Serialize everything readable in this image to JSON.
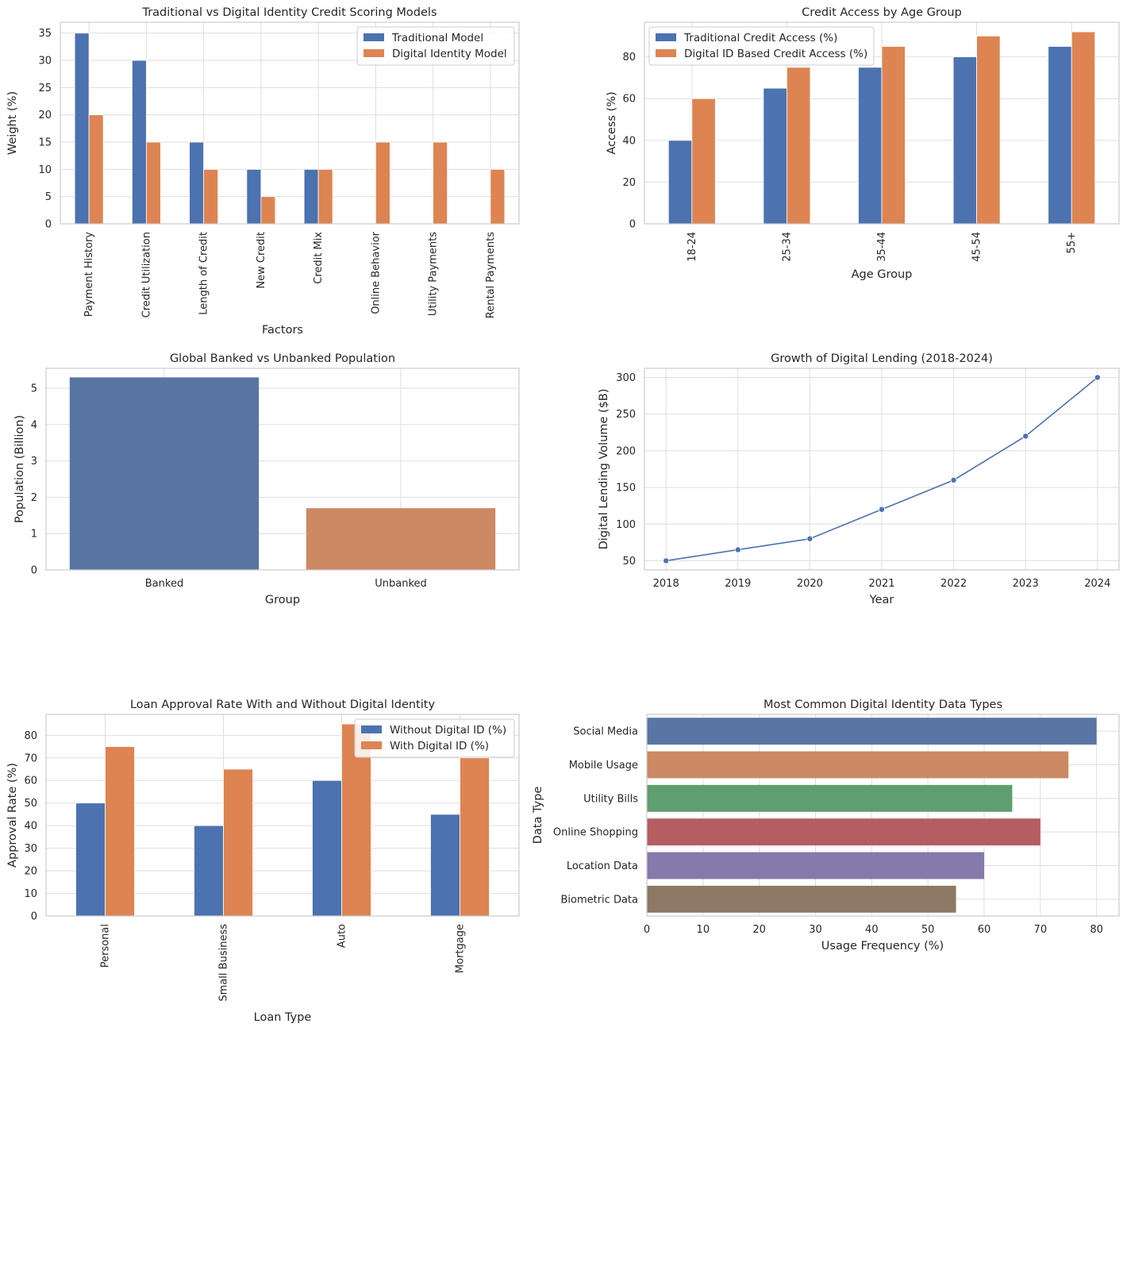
{
  "colors": {
    "blue": "#4c72b0",
    "orange": "#dd8452",
    "muted_blue": "#5875a4",
    "muted_orange": "#cc8963",
    "green": "#5f9e6e",
    "red": "#b55d60",
    "purple": "#857aab",
    "brown": "#8d7866",
    "grid": "#dedede",
    "frame": "#cccccc"
  },
  "chart_data": [
    {
      "type": "bar",
      "title": "Traditional vs Digital Identity Credit Scoring Models",
      "xlabel": "Factors",
      "ylabel": "Weight (%)",
      "categories": [
        "Payment History",
        "Credit Utilization",
        "Length of Credit",
        "New Credit",
        "Credit Mix",
        "Online Behavior",
        "Utility Payments",
        "Rental Payments"
      ],
      "series": [
        {
          "name": "Traditional Model",
          "values": [
            35,
            30,
            15,
            10,
            10,
            0,
            0,
            0
          ]
        },
        {
          "name": "Digital Identity Model",
          "values": [
            20,
            15,
            10,
            5,
            10,
            15,
            15,
            10
          ]
        }
      ],
      "ylim": [
        0,
        37
      ],
      "yticks": [
        "0",
        "5",
        "10",
        "15",
        "20",
        "25",
        "30",
        "35"
      ],
      "grid": true,
      "legend": "top-right"
    },
    {
      "type": "bar",
      "title": "Credit Access by Age Group",
      "xlabel": "Age Group",
      "ylabel": "Access (%)",
      "categories": [
        "18-24",
        "25-34",
        "35-44",
        "45-54",
        "55+"
      ],
      "series": [
        {
          "name": "Traditional Credit Access (%)",
          "values": [
            40,
            65,
            75,
            80,
            85
          ]
        },
        {
          "name": "Digital ID Based Credit Access (%)",
          "values": [
            60,
            75,
            85,
            90,
            92
          ]
        }
      ],
      "ylim": [
        0,
        96.6
      ],
      "yticks": [
        "0",
        "20",
        "40",
        "60",
        "80"
      ],
      "grid": true,
      "legend": "top-left"
    },
    {
      "type": "bar",
      "title": "Global Banked vs Unbanked Population",
      "xlabel": "Group",
      "ylabel": "Population (Billion)",
      "categories": [
        "Banked",
        "Unbanked"
      ],
      "values": [
        5.3,
        1.7
      ],
      "ylim": [
        0,
        5.55
      ],
      "yticks": [
        "0",
        "1",
        "2",
        "3",
        "4",
        "5"
      ],
      "grid": true
    },
    {
      "type": "line",
      "title": "Growth of Digital Lending (2018-2024)",
      "xlabel": "Year",
      "ylabel": "Digital Lending Volume ($B)",
      "x": [
        2018,
        2019,
        2020,
        2021,
        2022,
        2023,
        2024
      ],
      "series": [
        {
          "values": [
            50,
            65,
            80,
            120,
            160,
            220,
            300
          ]
        }
      ],
      "xlim": [
        2017.7,
        2024.3
      ],
      "ylim": [
        37.5,
        312.5
      ],
      "xticks": [
        "2018",
        "2019",
        "2020",
        "2021",
        "2022",
        "2023",
        "2024"
      ],
      "yticks": [
        "50",
        "100",
        "150",
        "200",
        "250",
        "300"
      ],
      "grid": true
    },
    {
      "type": "bar",
      "title": "Loan Approval Rate With and Without Digital Identity",
      "xlabel": "Loan Type",
      "ylabel": "Approval Rate (%)",
      "categories": [
        "Personal",
        "Small Business",
        "Auto",
        "Mortgage"
      ],
      "series": [
        {
          "name": "Without Digital ID (%)",
          "values": [
            50,
            40,
            60,
            45
          ]
        },
        {
          "name": "With Digital ID (%)",
          "values": [
            75,
            65,
            85,
            70
          ]
        }
      ],
      "ylim": [
        0,
        89.25
      ],
      "yticks": [
        "0",
        "10",
        "20",
        "30",
        "40",
        "50",
        "60",
        "70",
        "80"
      ],
      "grid": true,
      "legend": "top-right"
    },
    {
      "type": "bar",
      "orientation": "horizontal",
      "title": "Most Common Digital Identity Data Types",
      "xlabel": "Usage Frequency (%)",
      "ylabel": "Data Type",
      "categories": [
        "Social Media",
        "Mobile Usage",
        "Utility Bills",
        "Online Shopping",
        "Location Data",
        "Biometric Data"
      ],
      "values": [
        80,
        75,
        65,
        70,
        60,
        55
      ],
      "xlim": [
        0,
        84
      ],
      "xticks": [
        "0",
        "10",
        "20",
        "30",
        "40",
        "50",
        "60",
        "70",
        "80"
      ],
      "grid": true
    }
  ]
}
